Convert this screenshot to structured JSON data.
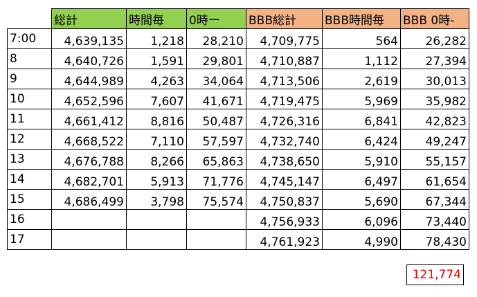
{
  "headers": [
    "総計",
    "時間毎",
    "0時ー",
    "BBB総計",
    "BBB時間毎",
    "BBB 0時-"
  ],
  "colors": {
    "green": "#92d050",
    "orange": "#f4b183",
    "total_text": "#e00000"
  },
  "rows": [
    {
      "label": "7:00",
      "cells": [
        "4,639,135",
        "1,218",
        "28,210",
        "4,709,775",
        "564",
        "26,282"
      ]
    },
    {
      "label": "8",
      "cells": [
        "4,640,726",
        "1,591",
        "29,801",
        "4,710,887",
        "1,112",
        "27,394"
      ]
    },
    {
      "label": "9",
      "cells": [
        "4,644,989",
        "4,263",
        "34,064",
        "4,713,506",
        "2,619",
        "30,013"
      ]
    },
    {
      "label": "10",
      "cells": [
        "4,652,596",
        "7,607",
        "41,671",
        "4,719,475",
        "5,969",
        "35,982"
      ]
    },
    {
      "label": "11",
      "cells": [
        "4,661,412",
        "8,816",
        "50,487",
        "4,726,316",
        "6,841",
        "42,823"
      ]
    },
    {
      "label": "12",
      "cells": [
        "4,668,522",
        "7,110",
        "57,597",
        "4,732,740",
        "6,424",
        "49,247"
      ]
    },
    {
      "label": "13",
      "cells": [
        "4,676,788",
        "8,266",
        "65,863",
        "4,738,650",
        "5,910",
        "55,157"
      ]
    },
    {
      "label": "14",
      "cells": [
        "4,682,701",
        "5,913",
        "71,776",
        "4,745,147",
        "6,497",
        "61,654"
      ]
    },
    {
      "label": "15",
      "cells": [
        "4,686,499",
        "3,798",
        "75,574",
        "4,750,837",
        "5,690",
        "67,344"
      ]
    },
    {
      "label": "16",
      "cells": [
        "",
        "",
        "",
        "4,756,933",
        "6,096",
        "73,440"
      ]
    },
    {
      "label": "17",
      "cells": [
        "",
        "",
        "",
        "4,761,923",
        "4,990",
        "78,430"
      ]
    }
  ],
  "total": "121,774"
}
